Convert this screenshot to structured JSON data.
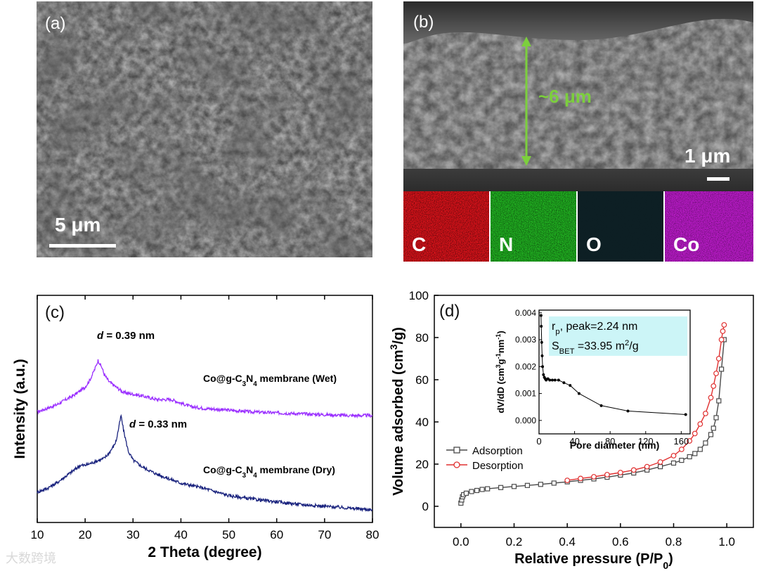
{
  "panels": {
    "a": {
      "label": "(a)",
      "scale": "5 μm"
    },
    "b": {
      "label": "(b)",
      "scale": "1 μm",
      "thickness": "~6 μm",
      "eds": [
        {
          "symbol": "C",
          "color": "#e0131b"
        },
        {
          "symbol": "N",
          "color": "#22b822"
        },
        {
          "symbol": "O",
          "color": "#1fb7b7"
        },
        {
          "symbol": "Co",
          "color": "#b51ac3"
        }
      ]
    },
    "c": {
      "label": "(c)"
    },
    "d": {
      "label": "(d)",
      "inset_text": {
        "rp_prefix": "r",
        "rp_sub": "p",
        "rp_rest": ", peak=2.24 nm",
        "s_prefix": "S",
        "s_sub": "BET",
        "s_rest": "=33.95 m",
        "s_sup": "2",
        "s_unit": "/g"
      }
    }
  },
  "chart_data": [
    {
      "type": "line",
      "xlabel": "2 Theta (degree)",
      "ylabel": "Intensity (a.u.)",
      "xlim": [
        10,
        80
      ],
      "xticks": [
        10,
        20,
        30,
        40,
        50,
        60,
        70,
        80
      ],
      "grid": false,
      "series": [
        {
          "name": "Co@g-C3N4 membrane (Wet)",
          "color": "#9b30ff",
          "x": [
            10,
            12,
            14,
            16,
            18,
            19,
            20,
            21,
            22,
            22.7,
            23.5,
            24,
            25,
            26,
            27,
            28,
            30,
            32,
            35,
            38,
            40,
            42,
            45,
            50,
            55,
            60,
            65,
            70,
            75,
            80
          ],
          "y": [
            0.55,
            0.57,
            0.59,
            0.62,
            0.65,
            0.67,
            0.69,
            0.73,
            0.79,
            0.84,
            0.8,
            0.76,
            0.72,
            0.7,
            0.68,
            0.66,
            0.65,
            0.64,
            0.62,
            0.62,
            0.6,
            0.58,
            0.57,
            0.56,
            0.55,
            0.545,
            0.54,
            0.535,
            0.53,
            0.53
          ]
        },
        {
          "name": "Co@g-C3N4 membrane (Dry)",
          "color": "#1a237e",
          "x": [
            10,
            12,
            14,
            16,
            18,
            19,
            20,
            22,
            24,
            25,
            26,
            26.5,
            27,
            27.5,
            28,
            29,
            30,
            32,
            35,
            38,
            40,
            45,
            50,
            55,
            60,
            65,
            70,
            75,
            80
          ],
          "y": [
            0.1,
            0.12,
            0.15,
            0.19,
            0.23,
            0.25,
            0.25,
            0.27,
            0.29,
            0.32,
            0.36,
            0.39,
            0.46,
            0.53,
            0.45,
            0.33,
            0.28,
            0.24,
            0.2,
            0.17,
            0.15,
            0.12,
            0.08,
            0.06,
            0.045,
            0.03,
            0.02,
            0.01,
            0.0
          ]
        }
      ],
      "annotations": [
        {
          "prefix": "d",
          "text": " = 0.39 nm",
          "x": 23,
          "y": 0.78
        },
        {
          "prefix": "d",
          "text": " = 0.33 nm",
          "x": 28,
          "y": 0.47
        }
      ],
      "series_labels": [
        {
          "main": "Co@g-C",
          "sub1": "3",
          "mid": "N",
          "sub2": "4",
          "rest": " membrane (Wet)"
        },
        {
          "main": "Co@g-C",
          "sub1": "3",
          "mid": "N",
          "sub2": "4",
          "rest": " membrane (Dry)"
        }
      ]
    },
    {
      "type": "line",
      "xlabel": "Relative pressure (P/P",
      "xlabel_sub": "0",
      "xlabel_tail": ")",
      "ylabel": "Volume adsorbed (cm",
      "ylabel_sup": "3",
      "ylabel_tail": "/g)",
      "xlim": [
        -0.1,
        1.1
      ],
      "ylim": [
        -10,
        100
      ],
      "xticks": [
        0.0,
        0.2,
        0.4,
        0.6,
        0.8,
        1.0
      ],
      "yticks": [
        0,
        20,
        40,
        60,
        80,
        100
      ],
      "legend": "bottom-left",
      "series": [
        {
          "name": "Adsorption",
          "color": "#4a4a4a",
          "marker": "square",
          "x": [
            0.0,
            0.003,
            0.006,
            0.01,
            0.02,
            0.04,
            0.06,
            0.08,
            0.1,
            0.15,
            0.2,
            0.25,
            0.3,
            0.35,
            0.4,
            0.45,
            0.5,
            0.55,
            0.6,
            0.65,
            0.7,
            0.75,
            0.8,
            0.83,
            0.86,
            0.88,
            0.9,
            0.92,
            0.94,
            0.95,
            0.96,
            0.97,
            0.98,
            0.99
          ],
          "y": [
            1.5,
            3,
            4.5,
            5.5,
            6.2,
            7,
            7.5,
            8,
            8.3,
            8.9,
            9.4,
            9.9,
            10.4,
            11,
            11.6,
            12.3,
            13,
            13.8,
            14.8,
            15.8,
            17.2,
            18.8,
            20.5,
            21.8,
            23.5,
            25,
            27,
            30,
            34,
            37,
            42,
            50,
            65,
            79
          ]
        },
        {
          "name": "Desorption",
          "color": "#e03030",
          "marker": "circle",
          "x": [
            0.99,
            0.985,
            0.98,
            0.97,
            0.96,
            0.95,
            0.94,
            0.92,
            0.9,
            0.88,
            0.86,
            0.83,
            0.8,
            0.75,
            0.7,
            0.65,
            0.6,
            0.55,
            0.5,
            0.45,
            0.4
          ],
          "y": [
            86,
            83,
            79,
            70,
            63,
            57,
            51.5,
            44,
            39,
            34.5,
            31,
            27,
            24,
            21,
            18.8,
            17.2,
            16,
            15,
            14,
            13.2,
            12.3
          ]
        }
      ],
      "inset": {
        "type": "line",
        "xlabel": "Pore diameter (nm)",
        "ylabel": "dV/dD (cm",
        "ylabel_sup1": "3",
        "ylabel_mid": "g",
        "ylabel_sup2": "-1",
        "ylabel_mid2": "nm",
        "ylabel_sup3": "-1",
        "ylabel_tail": ")",
        "xlim": [
          0,
          170
        ],
        "ylim": [
          -0.0005,
          0.0041
        ],
        "xticks": [
          0,
          40,
          80,
          120,
          160
        ],
        "yticks": [
          "0.000",
          "0.001",
          "0.002",
          "0.003",
          "0.004"
        ],
        "x": [
          2.24,
          2.5,
          3,
          3.5,
          4,
          5,
          6,
          7,
          8,
          10,
          12,
          15,
          18,
          22,
          28,
          35,
          45,
          70,
          100,
          165
        ],
        "y": [
          0.0039,
          0.0035,
          0.0029,
          0.0024,
          0.002,
          0.0017,
          0.0016,
          0.00155,
          0.0015,
          0.00155,
          0.0015,
          0.0015,
          0.0015,
          0.0015,
          0.0014,
          0.0013,
          0.001,
          0.00055,
          0.00035,
          0.00022
        ]
      }
    }
  ],
  "watermark": "大数跨境"
}
